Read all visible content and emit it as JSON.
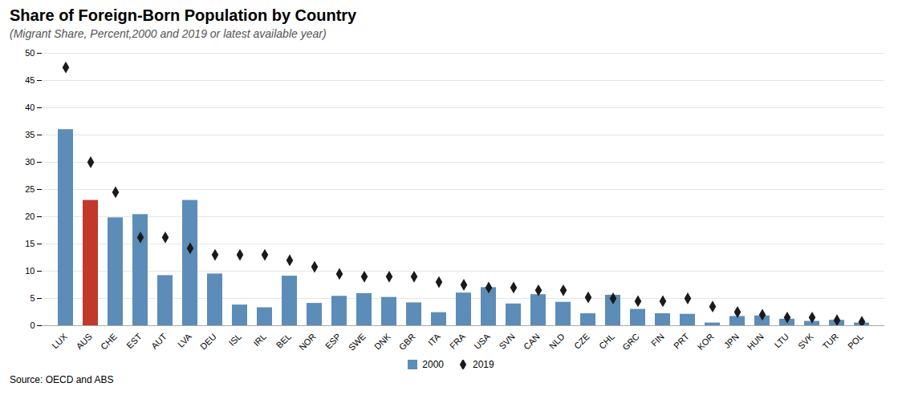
{
  "chart_data": {
    "type": "bar",
    "title": "Share of Foreign-Born Population by Country",
    "subtitle": "(Migrant Share, Percent,2000 and 2019 or latest available year)",
    "source": "Source: OECD and ABS",
    "categories": [
      "LUX",
      "AUS",
      "CHE",
      "EST",
      "AUT",
      "LVA",
      "DEU",
      "ISL",
      "IRL",
      "BEL",
      "NOR",
      "ESP",
      "SWE",
      "DNK",
      "GBR",
      "ITA",
      "FRA",
      "USA",
      "SVN",
      "CAN",
      "NLD",
      "CZE",
      "CHL",
      "GRC",
      "FIN",
      "PRT",
      "KOR",
      "JPN",
      "HUN",
      "LTU",
      "SVK",
      "TUR",
      "POL"
    ],
    "series": [
      {
        "name": "2000",
        "type": "bar",
        "color": "#5B8DB8",
        "colors": [
          "#5B8DB8",
          "#C0392B",
          "#5B8DB8",
          "#5B8DB8",
          "#5B8DB8",
          "#5B8DB8",
          "#5B8DB8",
          "#5B8DB8",
          "#5B8DB8",
          "#5B8DB8",
          "#5B8DB8",
          "#5B8DB8",
          "#5B8DB8",
          "#5B8DB8",
          "#5B8DB8",
          "#5B8DB8",
          "#5B8DB8",
          "#5B8DB8",
          "#5B8DB8",
          "#5B8DB8",
          "#5B8DB8",
          "#5B8DB8",
          "#5B8DB8",
          "#5B8DB8",
          "#5B8DB8",
          "#5B8DB8",
          "#5B8DB8",
          "#5B8DB8",
          "#5B8DB8",
          "#5B8DB8",
          "#5B8DB8",
          "#5B8DB8",
          "#5B8DB8"
        ],
        "values": [
          36.0,
          23.0,
          19.8,
          20.4,
          9.2,
          23.0,
          9.5,
          3.8,
          3.3,
          9.1,
          4.1,
          5.4,
          5.9,
          5.2,
          4.2,
          2.4,
          6.0,
          7.0,
          4.0,
          5.7,
          4.3,
          2.2,
          5.6,
          3.0,
          2.2,
          2.1,
          0.5,
          1.7,
          1.8,
          1.2,
          0.8,
          1.0,
          0.5
        ]
      },
      {
        "name": "2019",
        "type": "scatter",
        "color": "#1a1a1a",
        "marker": "diamond",
        "values": [
          47.4,
          30.0,
          24.5,
          16.2,
          16.2,
          14.2,
          13.0,
          13.0,
          13.0,
          12.0,
          10.8,
          9.5,
          9.0,
          9.0,
          9.0,
          8.0,
          7.5,
          7.0,
          7.0,
          6.5,
          6.5,
          5.2,
          5.0,
          4.5,
          4.5,
          5.0,
          3.5,
          2.5,
          2.0,
          1.5,
          1.5,
          1.0,
          0.7
        ]
      }
    ],
    "ylim": [
      0,
      50
    ],
    "yticks": [
      0,
      5,
      10,
      15,
      20,
      25,
      30,
      35,
      40,
      45,
      50
    ],
    "grid": true,
    "legend": "bottom"
  }
}
